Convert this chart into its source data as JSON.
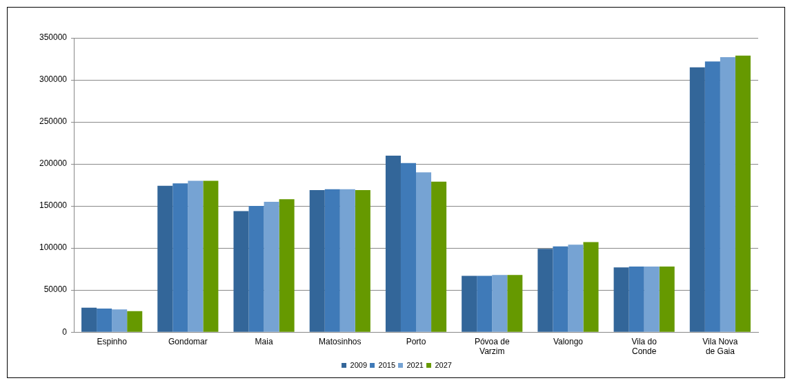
{
  "chart_data": {
    "type": "bar",
    "categories": [
      "Espinho",
      "Gondomar",
      "Maia",
      "Matosinhos",
      "Porto",
      "Póvoa de Varzim",
      "Valongo",
      "Vila do Conde",
      "Vila Nova de Gaia"
    ],
    "series": [
      {
        "name": "2009",
        "color": "#336699",
        "values": [
          29000,
          174000,
          144000,
          169000,
          210000,
          67000,
          99000,
          77000,
          315000
        ]
      },
      {
        "name": "2015",
        "color": "#3f7ab8",
        "values": [
          28000,
          177000,
          150000,
          170000,
          201000,
          67000,
          102000,
          78000,
          322000
        ]
      },
      {
        "name": "2021",
        "color": "#76a3d3",
        "values": [
          27000,
          180000,
          155000,
          170000,
          190000,
          68000,
          104000,
          78000,
          327000
        ]
      },
      {
        "name": "2027",
        "color": "#669900",
        "values": [
          25000,
          180000,
          158000,
          169000,
          179000,
          68000,
          107000,
          78000,
          329000
        ]
      }
    ],
    "ylim": [
      0,
      350000
    ],
    "yticks": [
      0,
      50000,
      100000,
      150000,
      200000,
      250000,
      300000,
      350000
    ],
    "grid": "y",
    "legend": "bottom"
  }
}
